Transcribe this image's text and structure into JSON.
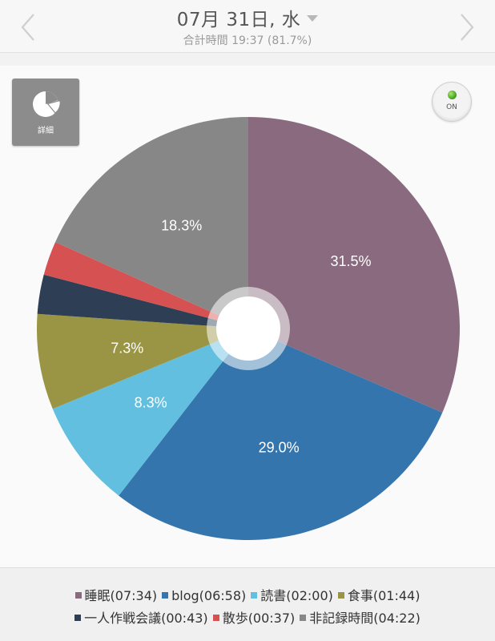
{
  "header": {
    "date_title": "07月 31日, 水",
    "total_time": "合計時間 19:37 (81.7%)"
  },
  "toolbar": {
    "detail_label": "詳細",
    "toggle_label": "ON"
  },
  "colors": {
    "sleep": "#8a6a7f",
    "blog": "#3575ad",
    "reading": "#62bfdf",
    "meal": "#9a9544",
    "strategy": "#2d3e55",
    "walk": "#d65252",
    "unrecorded": "#878787"
  },
  "chart_data": {
    "type": "pie",
    "donut_hole": true,
    "start_angle_deg": 0,
    "direction": "clockwise",
    "slices": [
      {
        "key": "sleep",
        "name": "睡眠",
        "time": "07:34",
        "value": 31.5,
        "label": "31.5%",
        "color": "#8a6a7f"
      },
      {
        "key": "blog",
        "name": "blog",
        "time": "06:58",
        "value": 29.0,
        "label": "29.0%",
        "color": "#3575ad"
      },
      {
        "key": "reading",
        "name": "読書",
        "time": "02:00",
        "value": 8.3,
        "label": "8.3%",
        "color": "#62bfdf"
      },
      {
        "key": "meal",
        "name": "食事",
        "time": "01:44",
        "value": 7.3,
        "label": "7.3%",
        "color": "#9a9544"
      },
      {
        "key": "strategy",
        "name": "一人作戦会議",
        "time": "00:43",
        "value": 3.0,
        "label": "",
        "color": "#2d3e55"
      },
      {
        "key": "walk",
        "name": "散歩",
        "time": "00:37",
        "value": 2.6,
        "label": "",
        "color": "#d65252"
      },
      {
        "key": "unrecorded",
        "name": "非記録時間",
        "time": "04:22",
        "value": 18.3,
        "label": "18.3%",
        "color": "#878787"
      }
    ]
  },
  "legend": {
    "row1": [
      {
        "text": "睡眠(07:34)",
        "color": "#8a6a7f"
      },
      {
        "text": "blog(06:58)",
        "color": "#3575ad"
      },
      {
        "text": "読書(02:00)",
        "color": "#62bfdf"
      },
      {
        "text": "食事(01:44)",
        "color": "#9a9544"
      }
    ],
    "row2": [
      {
        "text": "一人作戦会議(00:43)",
        "color": "#2d3e55"
      },
      {
        "text": "散歩(00:37)",
        "color": "#d65252"
      },
      {
        "text": "非記録時間(04:22)",
        "color": "#878787"
      }
    ]
  }
}
